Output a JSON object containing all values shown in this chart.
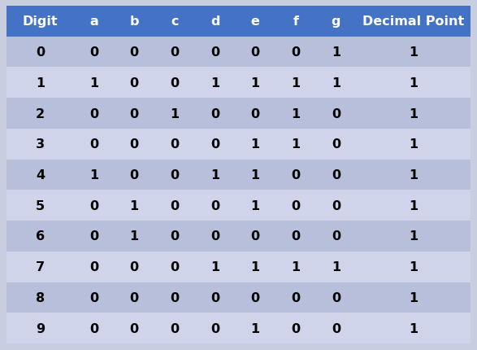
{
  "columns": [
    "Digit",
    "a",
    "b",
    "c",
    "d",
    "e",
    "f",
    "g",
    "Decimal Point"
  ],
  "rows": [
    [
      "0",
      "0",
      "0",
      "0",
      "0",
      "0",
      "0",
      "1",
      "1"
    ],
    [
      "1",
      "1",
      "0",
      "0",
      "1",
      "1",
      "1",
      "1",
      "1"
    ],
    [
      "2",
      "0",
      "0",
      "1",
      "0",
      "0",
      "1",
      "0",
      "1"
    ],
    [
      "3",
      "0",
      "0",
      "0",
      "0",
      "1",
      "1",
      "0",
      "1"
    ],
    [
      "4",
      "1",
      "0",
      "0",
      "1",
      "1",
      "0",
      "0",
      "1"
    ],
    [
      "5",
      "0",
      "1",
      "0",
      "0",
      "1",
      "0",
      "0",
      "1"
    ],
    [
      "6",
      "0",
      "1",
      "0",
      "0",
      "0",
      "0",
      "0",
      "1"
    ],
    [
      "7",
      "0",
      "0",
      "0",
      "1",
      "1",
      "1",
      "1",
      "1"
    ],
    [
      "8",
      "0",
      "0",
      "0",
      "0",
      "0",
      "0",
      "0",
      "1"
    ],
    [
      "9",
      "0",
      "0",
      "0",
      "0",
      "1",
      "0",
      "0",
      "1"
    ]
  ],
  "header_bg_color": "#4472C4",
  "header_text_color": "#FFFFFF",
  "row_even_color": "#B8BFDA",
  "row_odd_color": "#D0D4EA",
  "outer_bg_color": "#C9CDE0",
  "text_color": "#000000",
  "header_fontsize": 11.5,
  "cell_fontsize": 11.5,
  "col_widths": [
    1.0,
    0.6,
    0.6,
    0.6,
    0.6,
    0.6,
    0.6,
    0.6,
    1.7
  ]
}
